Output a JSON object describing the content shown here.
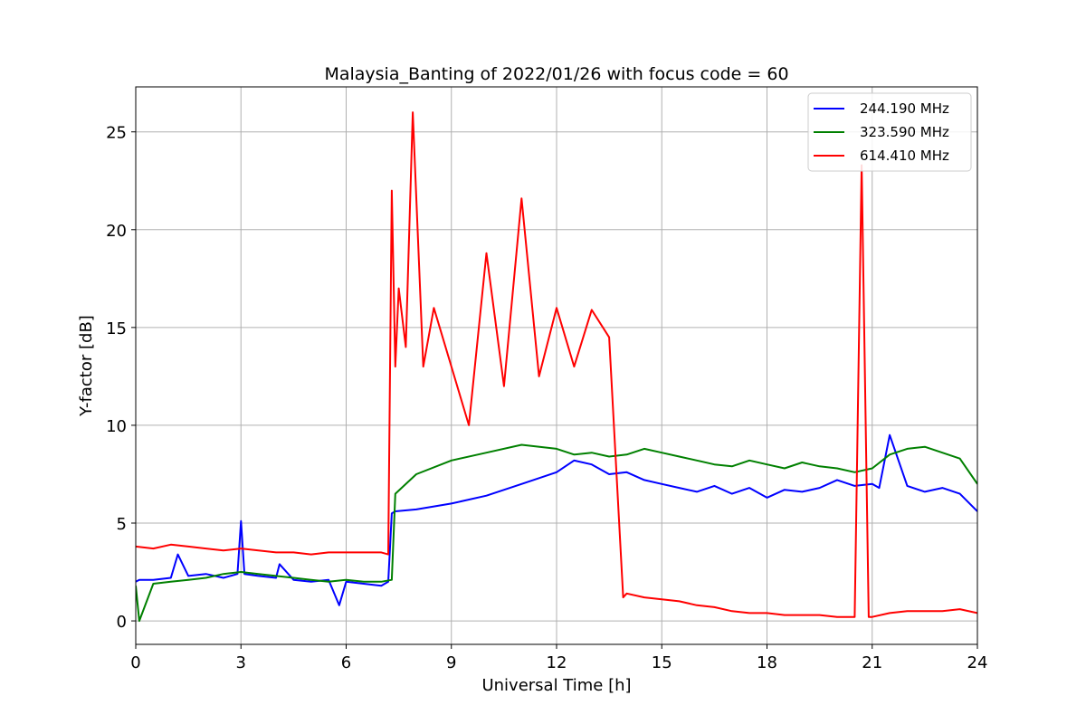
{
  "chart_data": {
    "type": "line",
    "title": "Malaysia_Banting of 2022/01/26 with focus code = 60",
    "xlabel": "Universal Time [h]",
    "ylabel": "Y-factor [dB]",
    "xlim": [
      0,
      24
    ],
    "ylim": [
      -1.2,
      27.3
    ],
    "xticks": [
      0,
      3,
      6,
      9,
      12,
      15,
      18,
      21,
      24
    ],
    "yticks": [
      0,
      5,
      10,
      15,
      20,
      25
    ],
    "grid": true,
    "legend_position": "top-right",
    "series": [
      {
        "name": "244.190 MHz",
        "color": "#0000ff",
        "x": [
          0,
          0.1,
          0.5,
          1,
          1.2,
          1.5,
          2,
          2.5,
          2.9,
          3.0,
          3.1,
          3.5,
          4,
          4.1,
          4.5,
          5,
          5.5,
          5.8,
          6,
          6.5,
          7,
          7.2,
          7.3,
          7.4,
          8,
          9,
          10,
          11,
          12,
          12.5,
          13,
          13.5,
          14,
          14.5,
          15,
          15.5,
          16,
          16.5,
          17,
          17.5,
          18,
          18.5,
          19,
          19.5,
          20,
          20.5,
          21,
          21.2,
          21.5,
          22,
          22.5,
          23,
          23.5,
          24
        ],
        "y": [
          2.0,
          2.1,
          2.1,
          2.2,
          3.4,
          2.3,
          2.4,
          2.2,
          2.4,
          5.1,
          2.4,
          2.3,
          2.2,
          2.9,
          2.1,
          2.0,
          2.1,
          0.8,
          2.0,
          1.9,
          1.8,
          2.0,
          5.5,
          5.6,
          5.7,
          6.0,
          6.4,
          7.0,
          7.6,
          8.2,
          8.0,
          7.5,
          7.6,
          7.2,
          7.0,
          6.8,
          6.6,
          6.9,
          6.5,
          6.8,
          6.3,
          6.7,
          6.6,
          6.8,
          7.2,
          6.9,
          7.0,
          6.8,
          9.5,
          6.9,
          6.6,
          6.8,
          6.5,
          5.6
        ]
      },
      {
        "name": "323.590 MHz",
        "color": "#008000",
        "x": [
          0,
          0.1,
          0.5,
          1,
          1.5,
          2,
          2.5,
          3,
          3.5,
          4,
          4.5,
          5,
          5.5,
          6,
          6.5,
          7,
          7.3,
          7.4,
          8,
          9,
          10,
          11,
          12,
          12.5,
          13,
          13.5,
          14,
          14.5,
          15,
          15.5,
          16,
          16.5,
          17,
          17.5,
          18,
          18.5,
          19,
          19.5,
          20,
          20.5,
          21,
          21.5,
          22,
          22.5,
          23,
          23.5,
          24
        ],
        "y": [
          1.8,
          0.0,
          1.9,
          2.0,
          2.1,
          2.2,
          2.4,
          2.5,
          2.4,
          2.3,
          2.2,
          2.1,
          2.0,
          2.1,
          2.0,
          2.0,
          2.1,
          6.5,
          7.5,
          8.2,
          8.6,
          9.0,
          8.8,
          8.5,
          8.6,
          8.4,
          8.5,
          8.8,
          8.6,
          8.4,
          8.2,
          8.0,
          7.9,
          8.2,
          8.0,
          7.8,
          8.1,
          7.9,
          7.8,
          7.6,
          7.8,
          8.5,
          8.8,
          8.9,
          8.6,
          8.3,
          7.0
        ]
      },
      {
        "name": "614.410 MHz",
        "color": "#ff0000",
        "x": [
          0,
          0.5,
          1,
          1.5,
          2,
          2.5,
          3,
          3.5,
          4,
          4.5,
          5,
          5.5,
          6,
          6.5,
          7,
          7.2,
          7.3,
          7.4,
          7.5,
          7.7,
          7.9,
          8.2,
          8.5,
          9,
          9.5,
          10,
          10.5,
          11,
          11.5,
          12,
          12.5,
          13,
          13.5,
          13.9,
          14,
          14.5,
          15,
          15.5,
          16,
          16.5,
          17,
          17.5,
          18,
          18.5,
          19,
          19.5,
          20,
          20.5,
          20.7,
          20.9,
          21,
          21.5,
          22,
          22.5,
          23,
          23.5,
          24
        ],
        "y": [
          3.8,
          3.7,
          3.9,
          3.8,
          3.7,
          3.6,
          3.7,
          3.6,
          3.5,
          3.5,
          3.4,
          3.5,
          3.5,
          3.5,
          3.5,
          3.4,
          22.0,
          13.0,
          17.0,
          14.0,
          26.0,
          13.0,
          16.0,
          13.0,
          10.0,
          18.8,
          12.0,
          21.6,
          12.5,
          16.0,
          13.0,
          15.9,
          14.5,
          1.2,
          1.4,
          1.2,
          1.1,
          1.0,
          0.8,
          0.7,
          0.5,
          0.4,
          0.4,
          0.3,
          0.3,
          0.3,
          0.2,
          0.2,
          23.3,
          0.2,
          0.2,
          0.4,
          0.5,
          0.5,
          0.5,
          0.6,
          0.4
        ]
      }
    ]
  }
}
